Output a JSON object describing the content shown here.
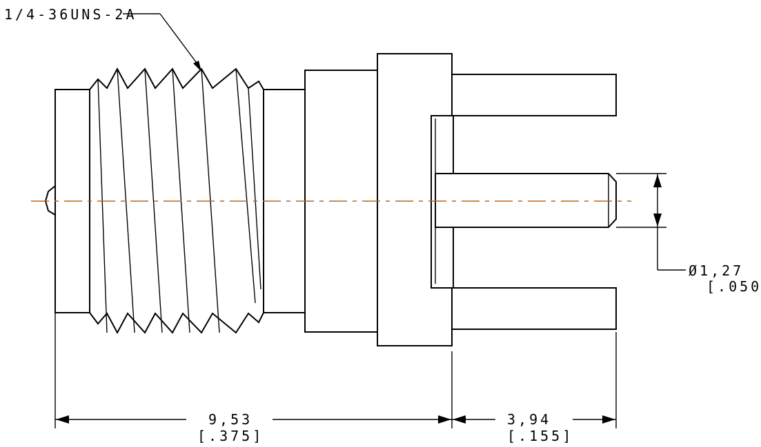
{
  "callouts": {
    "thread_spec": "1/4-36UNS-2A",
    "pin_diameter_mm": "Ø1,27",
    "pin_diameter_in": "[.050]",
    "overall_length_mm": "9,53",
    "overall_length_in": "[.375]",
    "pin_length_mm": "3,94",
    "pin_length_in": "[.155]"
  },
  "colors": {
    "line": "#000000",
    "centerline": "#b5651d",
    "background": "#ffffff"
  }
}
